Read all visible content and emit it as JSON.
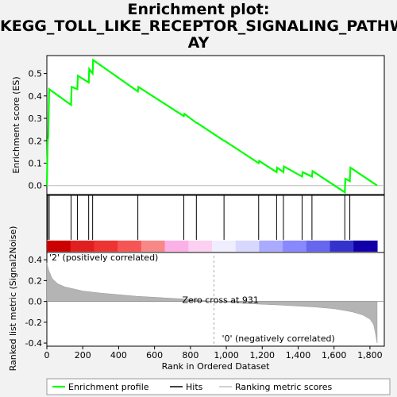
{
  "title_lines": [
    "Enrichment plot:",
    "KEGG_TOLL_LIKE_RECEPTOR_SIGNALING_PATHW",
    "AY"
  ],
  "chart_data": {
    "type": "line",
    "top_panel": {
      "ylabel": "Enrichment score (ES)",
      "ylim": [
        -0.04,
        0.58
      ],
      "yticks": [
        0.0,
        0.1,
        0.2,
        0.3,
        0.4,
        0.5
      ],
      "series": [
        {
          "name": "Enrichment profile",
          "color": "#00ff00",
          "x": [
            0,
            5,
            8,
            13,
            135,
            138,
            170,
            173,
            233,
            236,
            255,
            258,
            507,
            510,
            763,
            766,
            833,
            836,
            987,
            990,
            1180,
            1183,
            1280,
            1283,
            1318,
            1321,
            1422,
            1425,
            1477,
            1480,
            1660,
            1663,
            1688,
            1691,
            1840
          ],
          "y": [
            0.0,
            0.2,
            0.22,
            0.43,
            0.36,
            0.44,
            0.43,
            0.49,
            0.46,
            0.52,
            0.5,
            0.56,
            0.42,
            0.44,
            0.31,
            0.32,
            0.28,
            0.28,
            0.2,
            0.2,
            0.1,
            0.11,
            0.06,
            0.08,
            0.06,
            0.085,
            0.04,
            0.06,
            0.04,
            0.065,
            -0.03,
            0.03,
            0.02,
            0.08,
            0.0
          ]
        }
      ]
    },
    "hits": {
      "name": "Hits",
      "positions": [
        5,
        13,
        135,
        170,
        233,
        255,
        507,
        763,
        833,
        987,
        1180,
        1280,
        1318,
        1422,
        1477,
        1660,
        1688
      ]
    },
    "bottom_panel": {
      "xlabel": "Rank in Ordered Dataset",
      "ylabel": "Ranked list metric (Signal2Noise)",
      "ylim": [
        -0.43,
        0.47
      ],
      "yticks": [
        -0.4,
        -0.2,
        0.0,
        0.2,
        0.4
      ],
      "xlim": [
        0,
        1840
      ],
      "xticks": [
        0,
        200,
        400,
        600,
        800,
        1000,
        1200,
        1400,
        1600,
        1800
      ],
      "x_tick_labels": [
        "0",
        "200",
        "400",
        "600",
        "800",
        "1,000",
        "1,200",
        "1,400",
        "1,600",
        "1,800"
      ],
      "zero_cross": 931,
      "zero_cross_label": "Zero cross at 931",
      "pos_label": "'2' (positively correlated)",
      "neg_label": "'0' (negatively correlated)",
      "metric_profile_x": [
        0,
        10,
        30,
        60,
        100,
        150,
        200,
        300,
        400,
        500,
        600,
        700,
        800,
        931,
        1100,
        1300,
        1500,
        1600,
        1700,
        1760,
        1800,
        1820,
        1830,
        1840
      ],
      "metric_profile_y": [
        0.37,
        0.3,
        0.22,
        0.17,
        0.14,
        0.12,
        0.1,
        0.08,
        0.065,
        0.05,
        0.04,
        0.03,
        0.02,
        0.0,
        -0.02,
        -0.035,
        -0.055,
        -0.07,
        -0.1,
        -0.13,
        -0.17,
        -0.22,
        -0.3,
        -0.4
      ]
    },
    "legend": [
      {
        "name": "Enrichment profile",
        "color": "#00ff00"
      },
      {
        "name": "Hits",
        "color": "#000000"
      },
      {
        "name": "Ranking metric scores",
        "color": "#c0c0c0"
      }
    ],
    "colorbar_colors": [
      "#cc0000",
      "#e02020",
      "#ee3333",
      "#f55555",
      "#f88888",
      "#fbb0e6",
      "#fcd0f0",
      "#eeeeff",
      "#d8d8ff",
      "#aaaaff",
      "#8888ff",
      "#6666ee",
      "#3333cc",
      "#1100aa"
    ]
  }
}
